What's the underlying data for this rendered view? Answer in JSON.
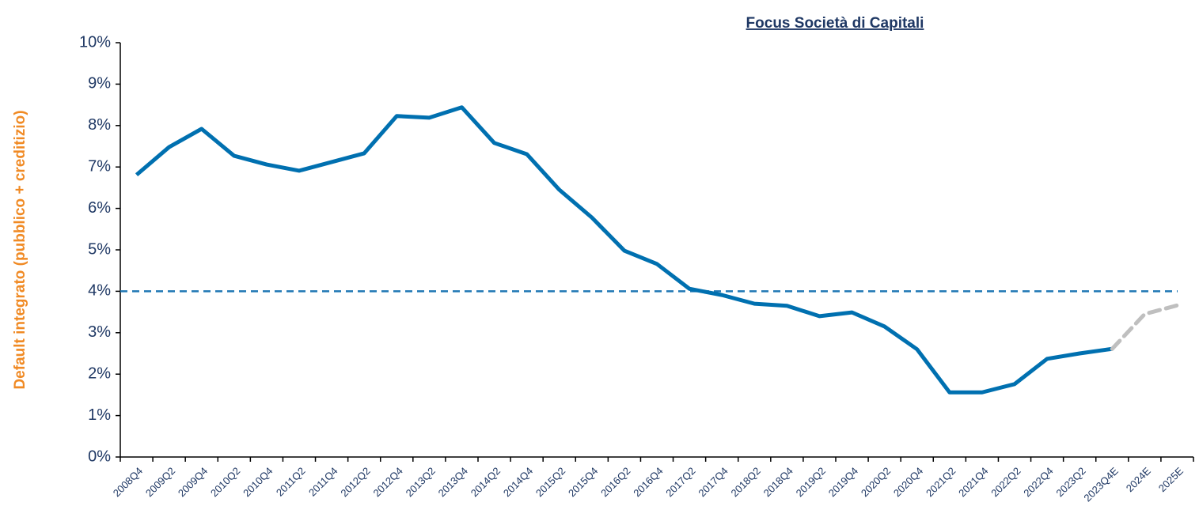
{
  "chart_data": {
    "type": "line",
    "title": "Focus Società di Capitali",
    "y_label": "Default integrato (pubblico + creditizio)",
    "categories": [
      "2008Q4",
      "2009Q2",
      "2009Q4",
      "2010Q2",
      "2010Q4",
      "2011Q2",
      "2011Q4",
      "2012Q2",
      "2012Q4",
      "2013Q2",
      "2013Q4",
      "2014Q2",
      "2014Q4",
      "2015Q2",
      "2015Q4",
      "2016Q2",
      "2016Q4",
      "2017Q2",
      "2017Q4",
      "2018Q2",
      "2018Q4",
      "2019Q2",
      "2019Q4",
      "2020Q2",
      "2020Q4",
      "2021Q2",
      "2021Q4",
      "2022Q2",
      "2022Q4",
      "2023Q2",
      "2023Q4E",
      "2024E",
      "2025E"
    ],
    "series": [
      {
        "color": "#0070b0",
        "dashed": false,
        "values": [
          6.81,
          7.48,
          7.92,
          7.27,
          7.06,
          6.91,
          7.12,
          7.33,
          8.23,
          8.19,
          8.44,
          7.58,
          7.31,
          6.45,
          5.78,
          4.98,
          4.66,
          4.06,
          3.91,
          3.7,
          3.65,
          3.4,
          3.49,
          3.15,
          2.6,
          1.56,
          1.56,
          1.76,
          2.37,
          2.5,
          2.61,
          null,
          null
        ]
      },
      {
        "color": "#bfbfbf",
        "dashed": true,
        "values": [
          null,
          null,
          null,
          null,
          null,
          null,
          null,
          null,
          null,
          null,
          null,
          null,
          null,
          null,
          null,
          null,
          null,
          null,
          null,
          null,
          null,
          null,
          null,
          null,
          null,
          null,
          null,
          null,
          null,
          null,
          2.61,
          3.45,
          3.66
        ]
      }
    ],
    "reference_line": {
      "value": 4,
      "color": "#1f77b4"
    },
    "ylim": [
      0,
      10
    ],
    "yticks": [
      {
        "value": 0,
        "label": "0%"
      },
      {
        "value": 1,
        "label": "1%"
      },
      {
        "value": 2,
        "label": "2%"
      },
      {
        "value": 3,
        "label": "3%"
      },
      {
        "value": 4,
        "label": "4%"
      },
      {
        "value": 5,
        "label": "5%"
      },
      {
        "value": 6,
        "label": "6%"
      },
      {
        "value": 7,
        "label": "7%"
      },
      {
        "value": 8,
        "label": "8%"
      },
      {
        "value": 9,
        "label": "9%"
      },
      {
        "value": 10,
        "label": "10%"
      }
    ],
    "grid": false
  }
}
